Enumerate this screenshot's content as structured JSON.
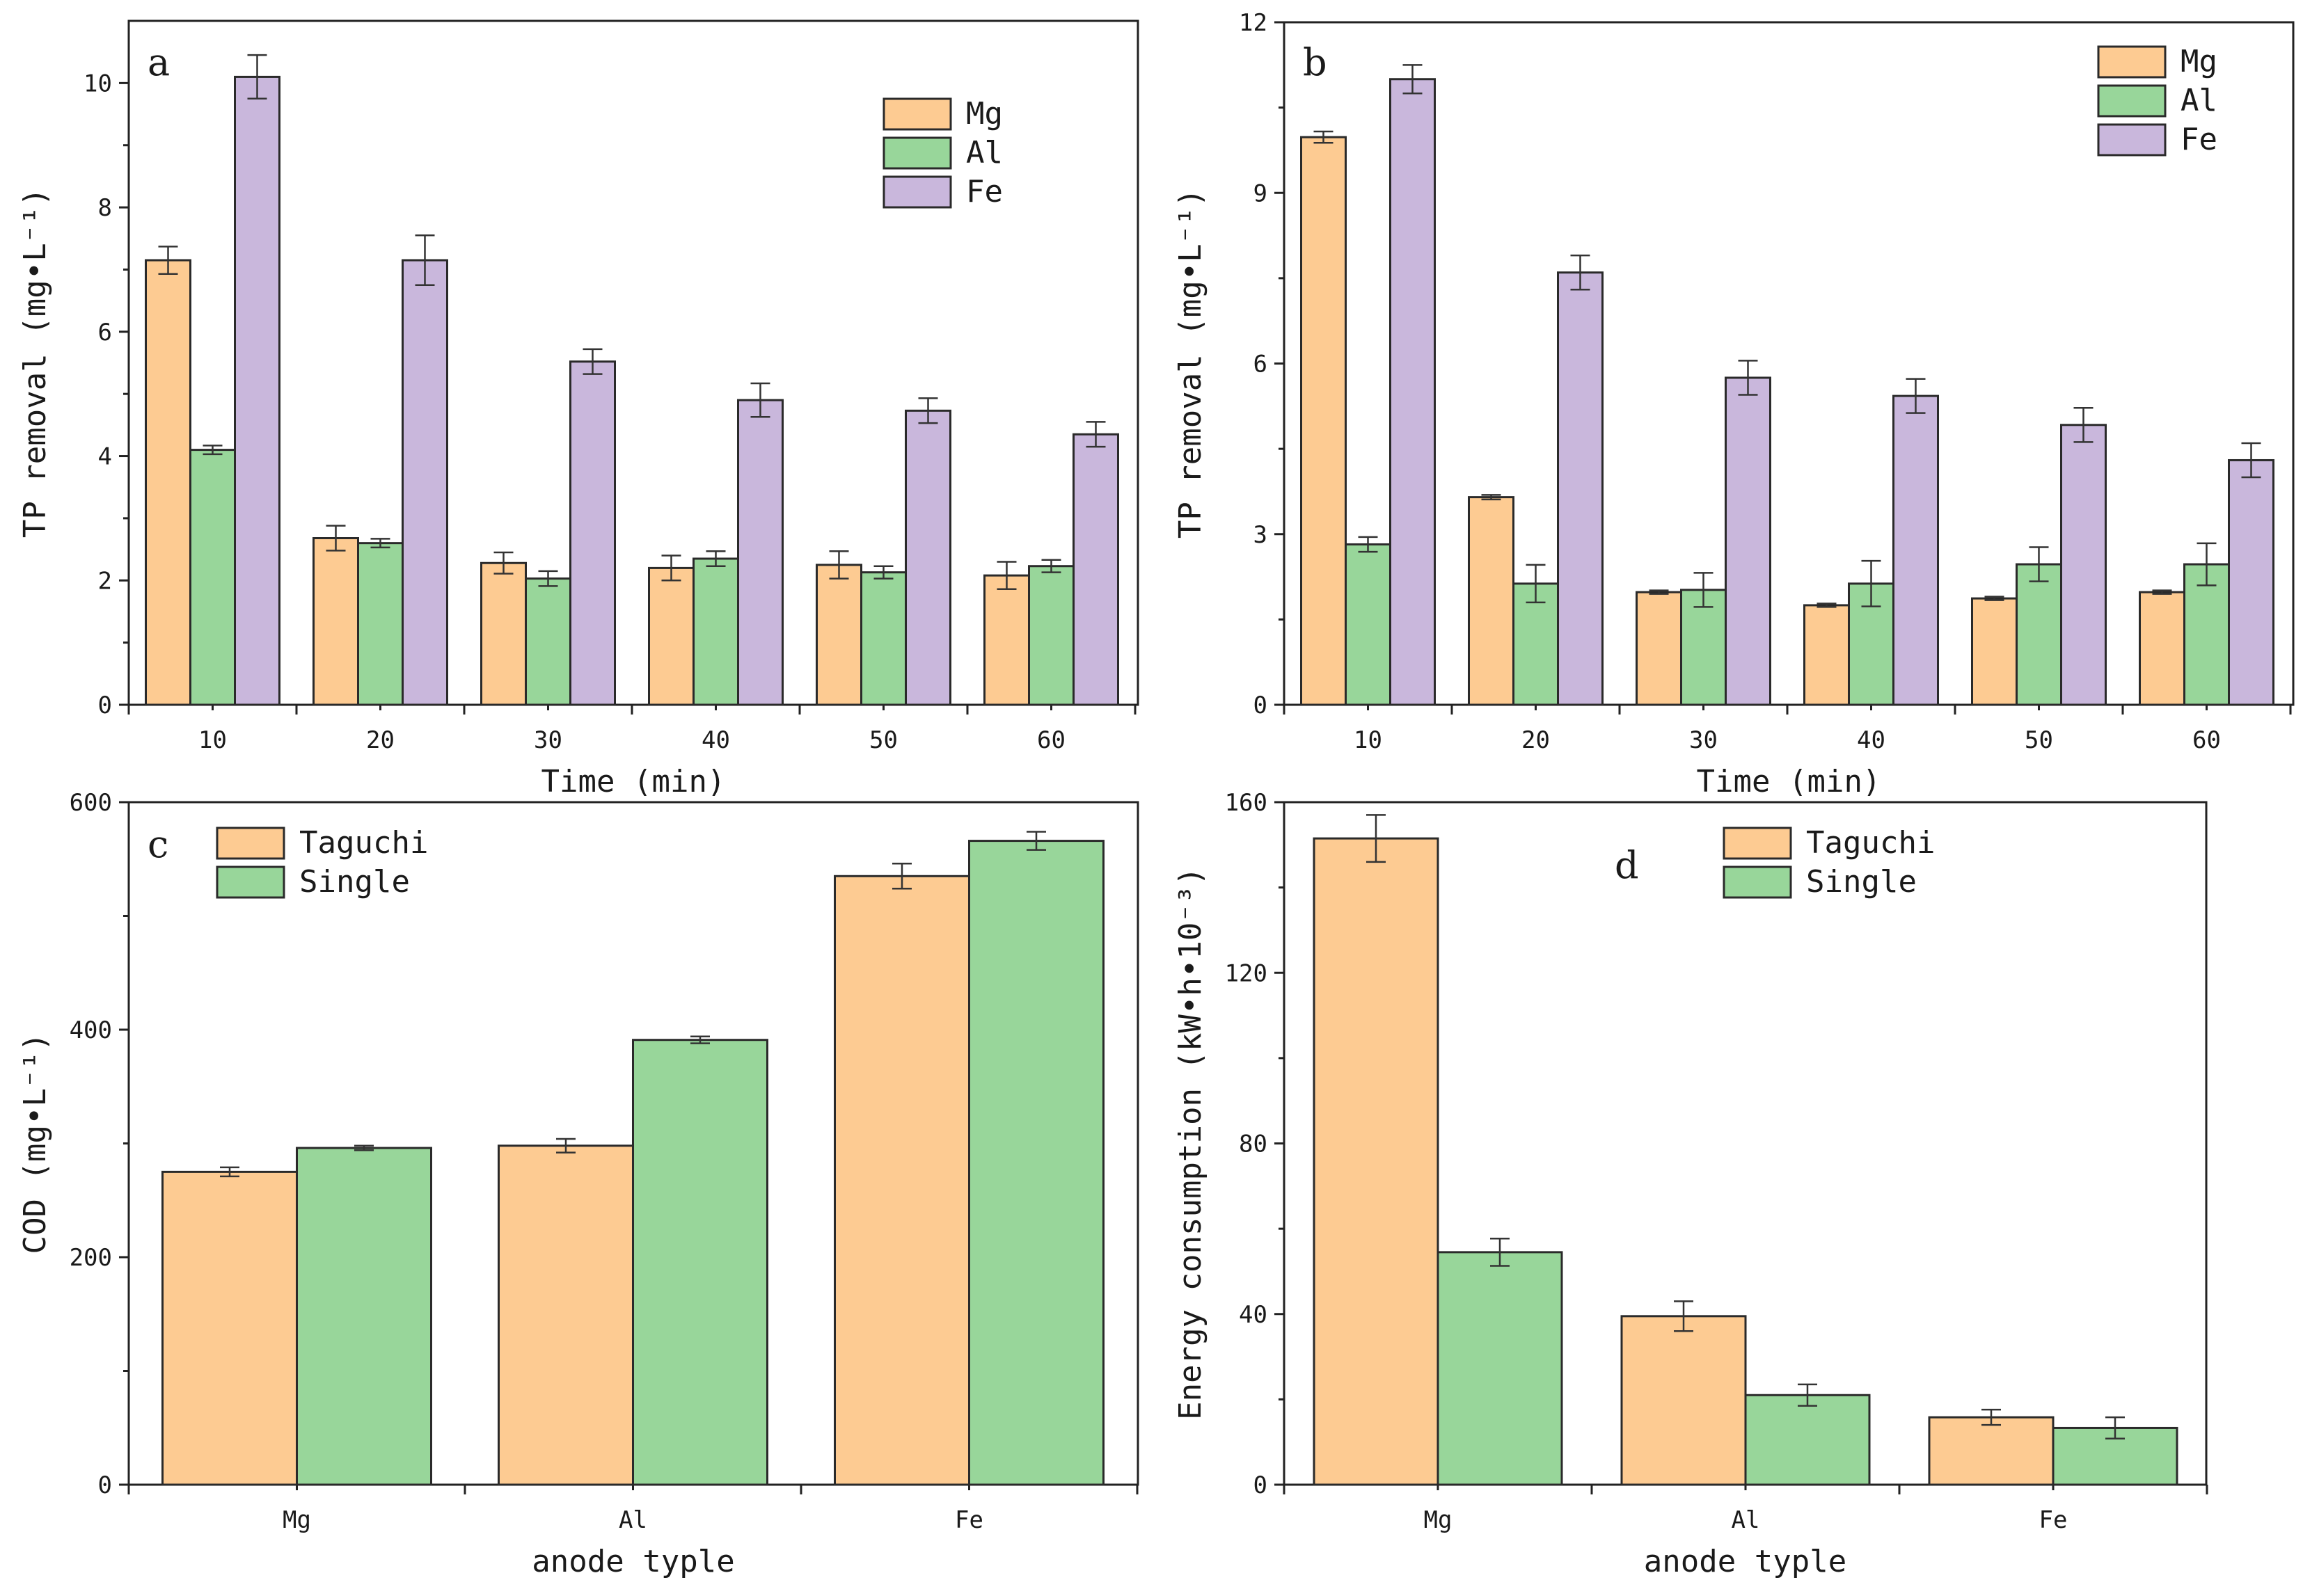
{
  "colors": {
    "Mg": "#FDCB92",
    "Al": "#98D69A",
    "Fe": "#C9B7DC",
    "Taguchi": "#FDCB92",
    "Single": "#98D69A"
  },
  "chart_data": [
    {
      "id": "a",
      "type": "bar",
      "panel_label": "a",
      "categories": [
        "10",
        "20",
        "30",
        "40",
        "50",
        "60"
      ],
      "series": [
        {
          "name": "Mg",
          "values": [
            7.15,
            2.68,
            2.28,
            2.2,
            2.25,
            2.08
          ],
          "errors": [
            0.22,
            0.2,
            0.17,
            0.2,
            0.22,
            0.22
          ]
        },
        {
          "name": "Al",
          "values": [
            4.1,
            2.6,
            2.03,
            2.35,
            2.13,
            2.23
          ],
          "errors": [
            0.07,
            0.07,
            0.12,
            0.12,
            0.1,
            0.1
          ]
        },
        {
          "name": "Fe",
          "values": [
            10.1,
            7.15,
            5.52,
            4.9,
            4.73,
            4.35
          ],
          "errors": [
            0.35,
            0.4,
            0.2,
            0.27,
            0.2,
            0.2
          ]
        }
      ],
      "xlabel": "Time (min)",
      "ylabel": "TP removal (mg•L⁻¹)",
      "ylim": [
        0,
        11
      ],
      "yticks": [
        "0",
        "2",
        "4",
        "6",
        "8",
        "10"
      ],
      "legend": "top-right"
    },
    {
      "id": "b",
      "type": "bar",
      "panel_label": "b",
      "categories": [
        "10",
        "20",
        "30",
        "40",
        "50",
        "60"
      ],
      "series": [
        {
          "name": "Mg",
          "values": [
            9.98,
            3.65,
            1.98,
            1.75,
            1.87,
            1.98
          ],
          "errors": [
            0.1,
            0.04,
            0.03,
            0.03,
            0.03,
            0.03
          ]
        },
        {
          "name": "Al",
          "values": [
            2.82,
            2.13,
            2.02,
            2.13,
            2.47,
            2.47
          ],
          "errors": [
            0.13,
            0.33,
            0.3,
            0.4,
            0.3,
            0.37
          ]
        },
        {
          "name": "Fe",
          "values": [
            11.0,
            7.6,
            5.75,
            5.43,
            4.92,
            4.3
          ],
          "errors": [
            0.25,
            0.3,
            0.3,
            0.3,
            0.3,
            0.3
          ]
        }
      ],
      "xlabel": "Time (min)",
      "ylabel": "TP removal (mg•L⁻¹)",
      "ylim": [
        0,
        12
      ],
      "yticks": [
        "0",
        "3",
        "6",
        "9",
        "12"
      ],
      "legend": "top-right"
    },
    {
      "id": "c",
      "type": "bar",
      "panel_label": "c",
      "categories": [
        "Mg",
        "Al",
        "Fe"
      ],
      "series": [
        {
          "name": "Taguchi",
          "values": [
            275,
            298,
            535
          ],
          "errors": [
            4,
            6,
            11
          ]
        },
        {
          "name": "Single",
          "values": [
            296,
            391,
            566
          ],
          "errors": [
            2,
            3,
            8
          ]
        }
      ],
      "xlabel": "anode typle",
      "ylabel": "COD (mg•L⁻¹)",
      "ylim": [
        0,
        600
      ],
      "yticks": [
        "0",
        "200",
        "400",
        "600"
      ],
      "legend": "top-left"
    },
    {
      "id": "d",
      "type": "bar",
      "panel_label": "d",
      "categories": [
        "Mg",
        "Al",
        "Fe"
      ],
      "series": [
        {
          "name": "Taguchi",
          "values": [
            151.5,
            39.5,
            15.8
          ],
          "errors": [
            5.5,
            3.5,
            1.8
          ]
        },
        {
          "name": "Single",
          "values": [
            54.5,
            21.0,
            13.3
          ],
          "errors": [
            3.2,
            2.5,
            2.5
          ]
        }
      ],
      "xlabel": "anode typle",
      "ylabel": "Energy consumption (kW•h•10⁻³)",
      "ylim": [
        0,
        160
      ],
      "yticks": [
        "0",
        "40",
        "80",
        "120",
        "160"
      ],
      "legend": "top-right"
    }
  ]
}
